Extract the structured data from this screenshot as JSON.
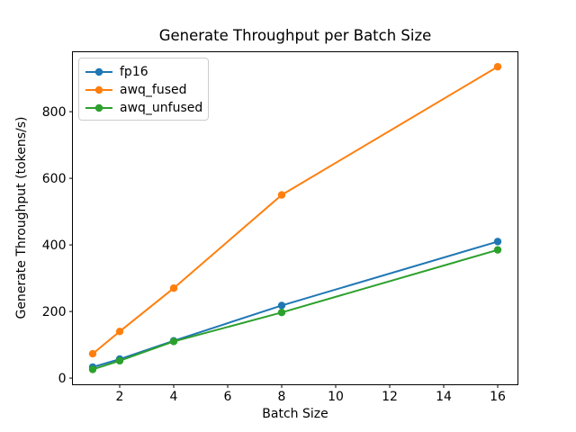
{
  "chart_data": {
    "type": "line",
    "title": "Generate Throughput per Batch Size",
    "xlabel": "Batch Size",
    "ylabel": "Generate Throughput (tokens/s)",
    "x": [
      1,
      2,
      4,
      8,
      16
    ],
    "series": [
      {
        "name": "fp16",
        "color": "#1f77b4",
        "values": [
          33,
          57,
          112,
          218,
          410
        ]
      },
      {
        "name": "awq_fused",
        "color": "#ff7f0e",
        "values": [
          73,
          140,
          270,
          550,
          935
        ]
      },
      {
        "name": "awq_unfused",
        "color": "#2ca02c",
        "values": [
          26,
          52,
          110,
          197,
          385
        ]
      }
    ],
    "xticks": [
      2,
      4,
      6,
      8,
      10,
      12,
      14,
      16
    ],
    "yticks": [
      0,
      200,
      400,
      600,
      800
    ],
    "xlim": [
      0.25,
      16.75
    ],
    "ylim": [
      -20,
      980
    ],
    "grid": false,
    "legend_position": "upper left",
    "marker": "o",
    "spine_color": "#000000",
    "tick_label_color": "#000000",
    "background_color": "#ffffff"
  }
}
